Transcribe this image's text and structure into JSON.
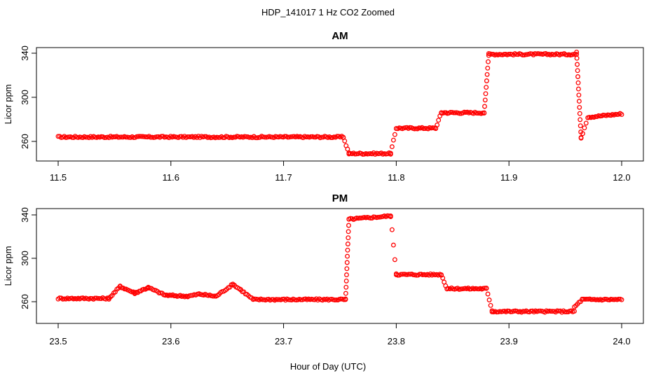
{
  "figure": {
    "suptitle": "HDP_141017  1 Hz CO2 Zoomed",
    "xlabel": "Hour of Day (UTC)"
  },
  "colors": {
    "points": "#ff0000",
    "axes": "#000000",
    "background": "#ffffff"
  },
  "chart_data": [
    {
      "type": "scatter",
      "title": "AM",
      "ylabel": "Licor ppm",
      "xlabel": "",
      "xlim": [
        11.5,
        12.0
      ],
      "ylim": [
        246,
        342
      ],
      "xticks": [
        "11.5",
        "11.6",
        "11.7",
        "11.8",
        "11.9",
        "12.0"
      ],
      "yticks": [
        "260",
        "300",
        "340"
      ],
      "grid": false,
      "series": [
        {
          "values_description_x_y": "piecewise CO2 record at 1 Hz",
          "segments": [
            {
              "x": [
                11.5,
                11.753
              ],
              "y": 264
            },
            {
              "x": [
                11.753,
                11.758
              ],
              "y": [
                264,
                249
              ]
            },
            {
              "x": [
                11.758,
                11.795
              ],
              "y": 249
            },
            {
              "x": [
                11.795,
                11.8
              ],
              "y": [
                249,
                272
              ]
            },
            {
              "x": [
                11.8,
                11.835
              ],
              "y": 272
            },
            {
              "x": [
                11.835,
                11.84
              ],
              "y": [
                272,
                286
              ]
            },
            {
              "x": [
                11.84,
                11.878
              ],
              "y": 286
            },
            {
              "x": [
                11.878,
                11.882
              ],
              "y": [
                286,
                338
              ]
            },
            {
              "x": [
                11.882,
                11.96
              ],
              "y": 339
            },
            {
              "x": [
                11.96,
                11.964
              ],
              "y": [
                341,
                263
              ]
            },
            {
              "x": [
                11.964,
                11.97
              ],
              "y": [
                263,
                282
              ]
            },
            {
              "x": [
                11.97,
                12.0
              ],
              "y": [
                282,
                285
              ]
            }
          ]
        }
      ]
    },
    {
      "type": "scatter",
      "title": "PM",
      "ylabel": "Licor ppm",
      "xlabel": "Hour of Day (UTC)",
      "xlim": [
        23.5,
        24.0
      ],
      "ylim": [
        246,
        342
      ],
      "xticks": [
        "23.5",
        "23.6",
        "23.7",
        "23.8",
        "23.9",
        "24.0"
      ],
      "yticks": [
        "260",
        "300",
        "340"
      ],
      "grid": false,
      "series": [
        {
          "values_description_x_y": "piecewise CO2 record at 1 Hz",
          "segments": [
            {
              "x": [
                23.5,
                23.545
              ],
              "y": 263
            },
            {
              "x": [
                23.545,
                23.555
              ],
              "y": [
                263,
                274
              ]
            },
            {
              "x": [
                23.555,
                23.568
              ],
              "y": [
                274,
                268
              ]
            },
            {
              "x": [
                23.568,
                23.58
              ],
              "y": [
                268,
                273
              ]
            },
            {
              "x": [
                23.58,
                23.595
              ],
              "y": [
                273,
                266
              ]
            },
            {
              "x": [
                23.595,
                23.615
              ],
              "y": [
                266,
                265
              ]
            },
            {
              "x": [
                23.615,
                23.625
              ],
              "y": [
                265,
                267
              ]
            },
            {
              "x": [
                23.625,
                23.64
              ],
              "y": [
                267,
                265
              ]
            },
            {
              "x": [
                23.64,
                23.655
              ],
              "y": [
                265,
                276
              ]
            },
            {
              "x": [
                23.655,
                23.662
              ],
              "y": [
                276,
                271
              ]
            },
            {
              "x": [
                23.662,
                23.673
              ],
              "y": [
                271,
                262
              ]
            },
            {
              "x": [
                23.673,
                23.755
              ],
              "y": 262
            },
            {
              "x": [
                23.755,
                23.758
              ],
              "y": [
                262,
                336
              ]
            },
            {
              "x": [
                23.758,
                23.795
              ],
              "y": [
                336,
                339
              ]
            },
            {
              "x": [
                23.795,
                23.8
              ],
              "y": [
                339,
                286
              ]
            },
            {
              "x": [
                23.8,
                23.84
              ],
              "y": 285
            },
            {
              "x": [
                23.84,
                23.845
              ],
              "y": [
                285,
                272
              ]
            },
            {
              "x": [
                23.845,
                23.88
              ],
              "y": 272
            },
            {
              "x": [
                23.88,
                23.885
              ],
              "y": [
                272,
                252
              ]
            },
            {
              "x": [
                23.885,
                23.958
              ],
              "y": 251
            },
            {
              "x": [
                23.958,
                23.965
              ],
              "y": [
                255,
                262
              ]
            },
            {
              "x": [
                23.965,
                24.0
              ],
              "y": 262
            }
          ]
        }
      ]
    }
  ]
}
